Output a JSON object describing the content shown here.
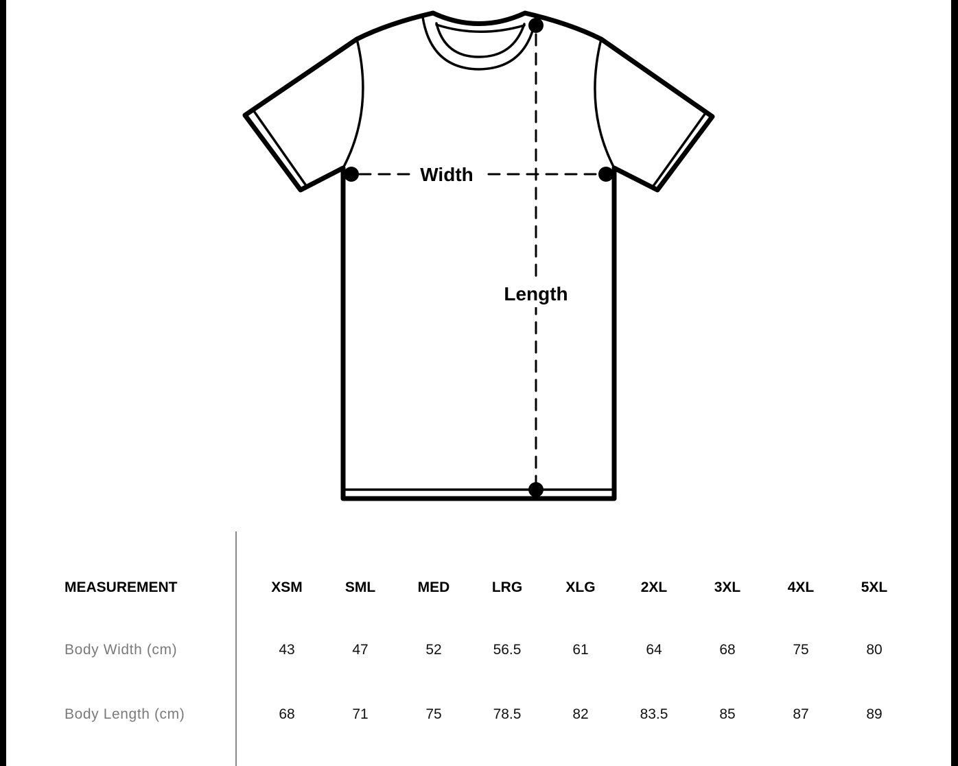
{
  "diagram": {
    "width_label": "Width",
    "length_label": "Length"
  },
  "table": {
    "header_label": "MEASUREMENT",
    "sizes": [
      "XSM",
      "SML",
      "MED",
      "LRG",
      "XLG",
      "2XL",
      "3XL",
      "4XL",
      "5XL"
    ],
    "rows": [
      {
        "label": "Body Width (cm)",
        "values": [
          "43",
          "47",
          "52",
          "56.5",
          "61",
          "64",
          "68",
          "75",
          "80"
        ]
      },
      {
        "label": "Body Length (cm)",
        "values": [
          "68",
          "71",
          "75",
          "78.5",
          "82",
          "83.5",
          "85",
          "87",
          "89"
        ]
      }
    ]
  }
}
